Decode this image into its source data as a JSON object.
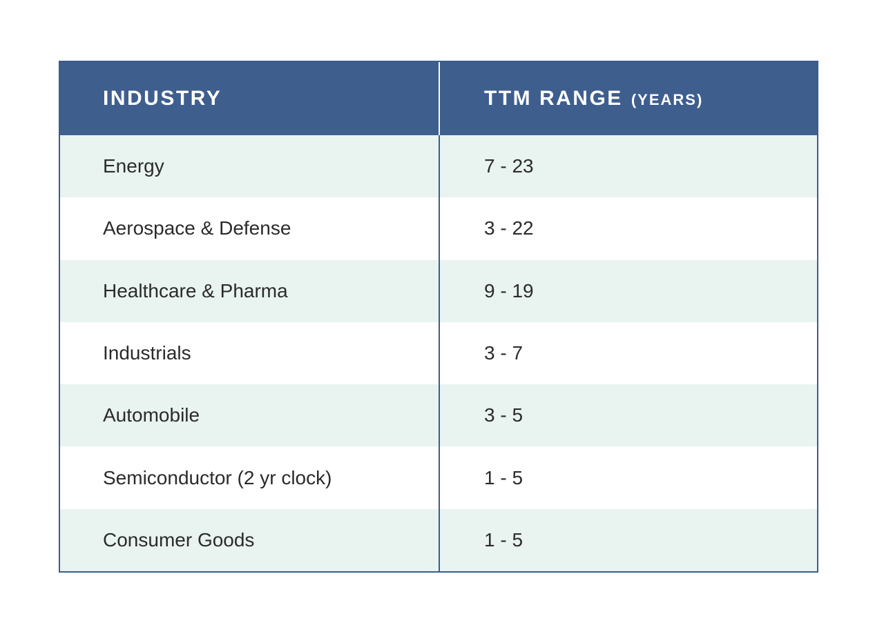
{
  "header": {
    "col1": "INDUSTRY",
    "col2_main": "TTM RANGE",
    "col2_sub": "(YEARS)"
  },
  "rows": [
    {
      "industry": "Energy",
      "range": "7 - 23"
    },
    {
      "industry": "Aerospace & Defense",
      "range": "3 - 22"
    },
    {
      "industry": "Healthcare & Pharma",
      "range": "9 - 19"
    },
    {
      "industry": "Industrials",
      "range": "3 - 7"
    },
    {
      "industry": "Automobile",
      "range": "3 - 5"
    },
    {
      "industry": "Semiconductor (2 yr clock)",
      "range": "1 - 5"
    },
    {
      "industry": "Consumer Goods",
      "range": "1 - 5"
    }
  ],
  "colors": {
    "header_bg": "#3e5e8e",
    "header_text": "#ffffff",
    "row_alt_bg": "#e9f3f0",
    "row_bg": "#ffffff",
    "border": "#3c5c8a",
    "body_text": "#2b2b2b"
  },
  "chart_data": {
    "type": "table",
    "title": "",
    "columns": [
      "INDUSTRY",
      "TTM RANGE (YEARS)"
    ],
    "rows": [
      [
        "Energy",
        "7 - 23"
      ],
      [
        "Aerospace & Defense",
        "3 - 22"
      ],
      [
        "Healthcare & Pharma",
        "9 - 19"
      ],
      [
        "Industrials",
        "3 - 7"
      ],
      [
        "Automobile",
        "3 - 5"
      ],
      [
        "Semiconductor (2 yr clock)",
        "1 - 5"
      ],
      [
        "Consumer Goods",
        "1 - 5"
      ]
    ],
    "ranges_numeric": [
      {
        "industry": "Energy",
        "min": 7,
        "max": 23
      },
      {
        "industry": "Aerospace & Defense",
        "min": 3,
        "max": 22
      },
      {
        "industry": "Healthcare & Pharma",
        "min": 9,
        "max": 19
      },
      {
        "industry": "Industrials",
        "min": 3,
        "max": 7
      },
      {
        "industry": "Automobile",
        "min": 3,
        "max": 5
      },
      {
        "industry": "Semiconductor (2 yr clock)",
        "min": 1,
        "max": 5
      },
      {
        "industry": "Consumer Goods",
        "min": 1,
        "max": 5
      }
    ]
  }
}
